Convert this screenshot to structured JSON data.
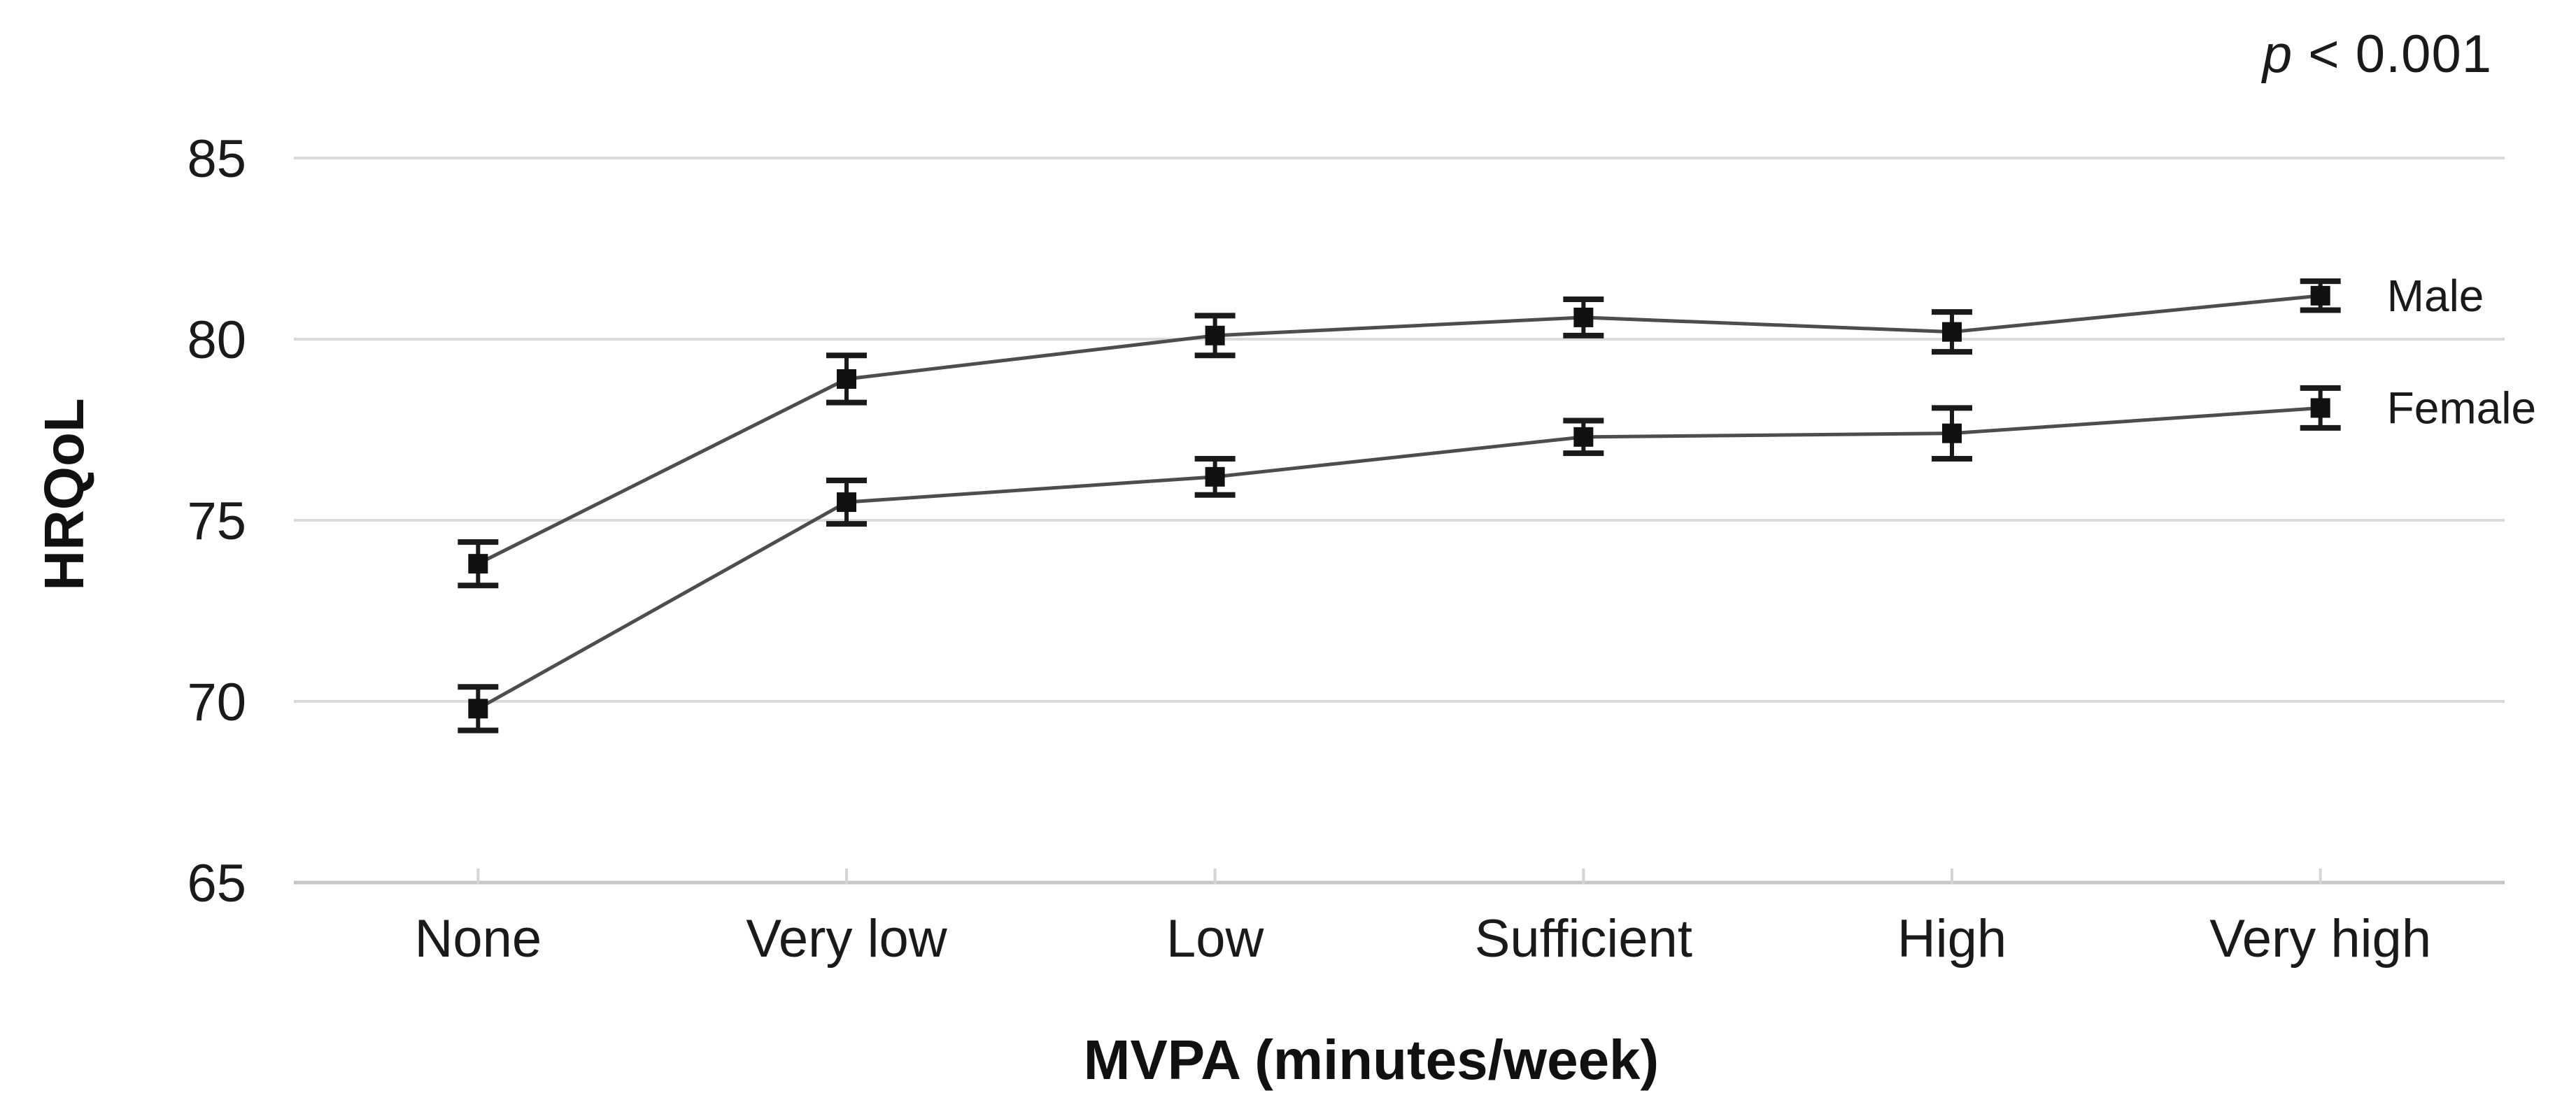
{
  "chart_data": {
    "type": "line",
    "title": "",
    "xlabel": "MVPA (minutes/week)",
    "ylabel": "HRQoL",
    "annotation": {
      "p_symbol": "p",
      "rest": " < 0.001"
    },
    "categories": [
      "None",
      "Very low",
      "Low",
      "Sufficient",
      "High",
      "Very high"
    ],
    "yticks": [
      65,
      70,
      75,
      80,
      85
    ],
    "ylim": [
      65,
      89
    ],
    "grid": true,
    "legend_position": "right-of-line-end",
    "series": [
      {
        "name": "Male",
        "values": [
          73.8,
          78.9,
          80.1,
          80.6,
          80.2,
          81.2
        ],
        "errors": [
          0.6,
          0.65,
          0.55,
          0.5,
          0.55,
          0.4
        ],
        "marker": "filled-square"
      },
      {
        "name": "Female",
        "values": [
          69.8,
          75.5,
          76.2,
          77.3,
          77.4,
          78.1
        ],
        "errors": [
          0.6,
          0.6,
          0.5,
          0.45,
          0.7,
          0.55
        ],
        "marker": "filled-square"
      }
    ],
    "colors": {
      "line": "#4d4d4d",
      "marker": "#111111",
      "error_bar": "#1a1a1a",
      "gridline": "#dadada",
      "axis_line": "#c6c6c6",
      "tick_mark": "#d5d5d5",
      "text": "#1a1a1a",
      "background": "#ffffff"
    }
  }
}
